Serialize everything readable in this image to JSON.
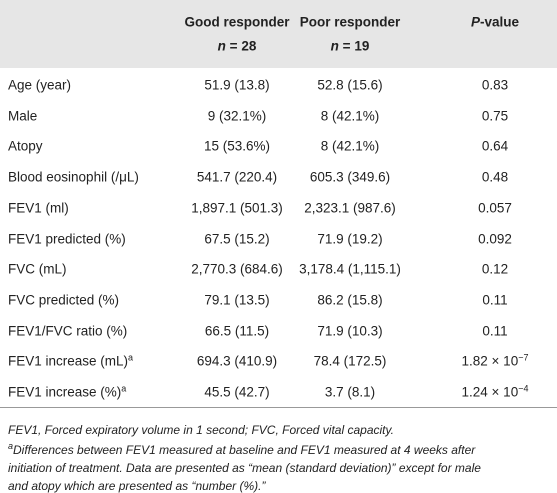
{
  "table": {
    "header": {
      "good": {
        "title": "Good responder",
        "n": "n",
        "count": "= 28"
      },
      "poor": {
        "title": "Poor responder",
        "n": "n",
        "count": "= 19"
      },
      "p": {
        "italic": "P",
        "rest": "-value"
      }
    },
    "rows": [
      {
        "label": {
          "text": "Age (year)"
        },
        "good": "51.9 (13.8)",
        "poor": "52.8 (15.6)",
        "p": {
          "text": "0.83"
        }
      },
      {
        "label": {
          "text": "Male"
        },
        "good": "9 (32.1%)",
        "poor": "8 (42.1%)",
        "p": {
          "text": "0.75"
        }
      },
      {
        "label": {
          "text": "Atopy"
        },
        "good": "15 (53.6%)",
        "poor": "8 (42.1%)",
        "p": {
          "text": "0.64"
        }
      },
      {
        "label": {
          "text": "Blood eosinophil (/μL)"
        },
        "good": "541.7 (220.4)",
        "poor": "605.3 (349.6)",
        "p": {
          "text": "0.48"
        }
      },
      {
        "label": {
          "text": "FEV1 (ml)"
        },
        "good": "1,897.1 (501.3)",
        "poor": "2,323.1 (987.6)",
        "p": {
          "text": "0.057"
        }
      },
      {
        "label": {
          "text": "FEV1 predicted (%)"
        },
        "good": "67.5 (15.2)",
        "poor": "71.9 (19.2)",
        "p": {
          "text": "0.092"
        }
      },
      {
        "label": {
          "text": "FVC (mL)"
        },
        "good": "2,770.3 (684.6)",
        "poor": "3,178.4 (1,115.1)",
        "p": {
          "text": "0.12"
        }
      },
      {
        "label": {
          "text": "FVC predicted (%)"
        },
        "good": "79.1 (13.5)",
        "poor": "86.2 (15.8)",
        "p": {
          "text": "0.11"
        }
      },
      {
        "label": {
          "text": "FEV1/FVC ratio (%)"
        },
        "good": "66.5 (11.5)",
        "poor": "71.9 (10.3)",
        "p": {
          "text": "0.11"
        }
      },
      {
        "label": {
          "text": "FEV1 increase (mL)",
          "sup": "a"
        },
        "good": "694.3 (410.9)",
        "poor": "78.4 (172.5)",
        "p": {
          "text": "1.82 × 10",
          "sup": "−7"
        }
      },
      {
        "label": {
          "text": "FEV1 increase (%)",
          "sup": "a"
        },
        "good": "45.5 (42.7)",
        "poor": "3.7 (8.1)",
        "p": {
          "text": "1.24 × 10",
          "sup": "−4"
        }
      }
    ],
    "footnotes": {
      "abbreviations": "FEV1, Forced expiratory volume in 1 second; FVC, Forced vital capacity.",
      "note": {
        "marker": "a",
        "lines": [
          "Differences between FEV1 measured at baseline and FEV1 measured at 4 weeks after",
          "initiation of treatment. Data are presented as “mean (standard deviation)” except for male",
          "and atopy which are presented as “number (%).”"
        ]
      }
    }
  }
}
